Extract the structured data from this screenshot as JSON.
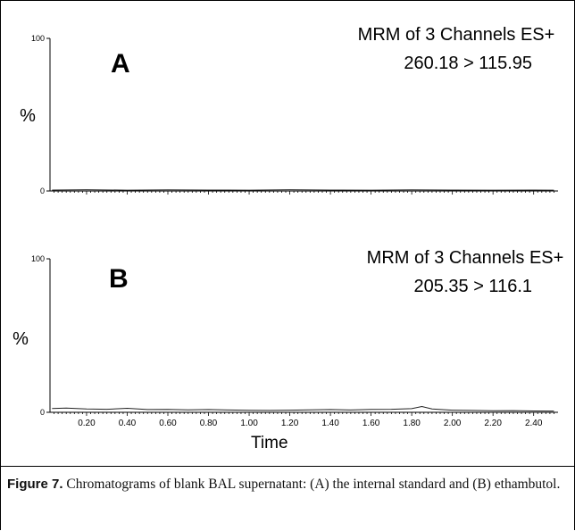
{
  "chart_data": [
    {
      "type": "line",
      "panel_label": "A",
      "title": "MRM of 3 Channels ES+",
      "subtitle": "260.18 > 115.95",
      "ylabel": "%",
      "xlabel": "",
      "ylim": [
        0,
        100
      ],
      "xlim": [
        0.02,
        2.52
      ],
      "y_ticks": [
        "100",
        "0"
      ],
      "series": [
        {
          "x": [
            0.03,
            0.2,
            0.4,
            0.6,
            0.8,
            1.0,
            1.2,
            1.4,
            1.6,
            1.8,
            2.0,
            2.2,
            2.4,
            2.5
          ],
          "y": [
            0.6,
            0.8,
            0.5,
            0.7,
            0.6,
            0.5,
            0.8,
            0.6,
            0.5,
            0.7,
            0.6,
            0.5,
            0.6,
            0.5
          ]
        }
      ]
    },
    {
      "type": "line",
      "panel_label": "B",
      "title": "MRM of 3 Channels ES+",
      "subtitle": "205.35 > 116.1",
      "ylabel": "%",
      "xlabel": "Time",
      "ylim": [
        0,
        100
      ],
      "xlim": [
        0.02,
        2.52
      ],
      "y_ticks": [
        "100",
        "0"
      ],
      "x_ticks": [
        "0.20",
        "0.40",
        "0.60",
        "0.80",
        "1.00",
        "1.20",
        "1.40",
        "1.60",
        "1.80",
        "2.00",
        "2.20",
        "2.40"
      ],
      "series": [
        {
          "x": [
            0.03,
            0.1,
            0.2,
            0.3,
            0.4,
            0.5,
            0.6,
            0.7,
            0.8,
            0.9,
            1.0,
            1.1,
            1.2,
            1.3,
            1.4,
            1.5,
            1.6,
            1.7,
            1.8,
            1.85,
            1.9,
            2.0,
            2.1,
            2.2,
            2.3,
            2.4,
            2.5
          ],
          "y": [
            2.5,
            2.8,
            2.2,
            2.0,
            2.6,
            1.8,
            1.9,
            1.6,
            1.8,
            1.5,
            1.3,
            1.2,
            1.4,
            1.6,
            1.8,
            1.5,
            1.9,
            2.0,
            2.4,
            3.8,
            2.2,
            1.4,
            1.2,
            1.0,
            1.1,
            0.9,
            0.8
          ]
        }
      ]
    }
  ],
  "caption": {
    "label": "Figure 7.",
    "text": " Chromatograms of blank BAL supernatant: (A) the internal standard and (B) ethambutol."
  }
}
